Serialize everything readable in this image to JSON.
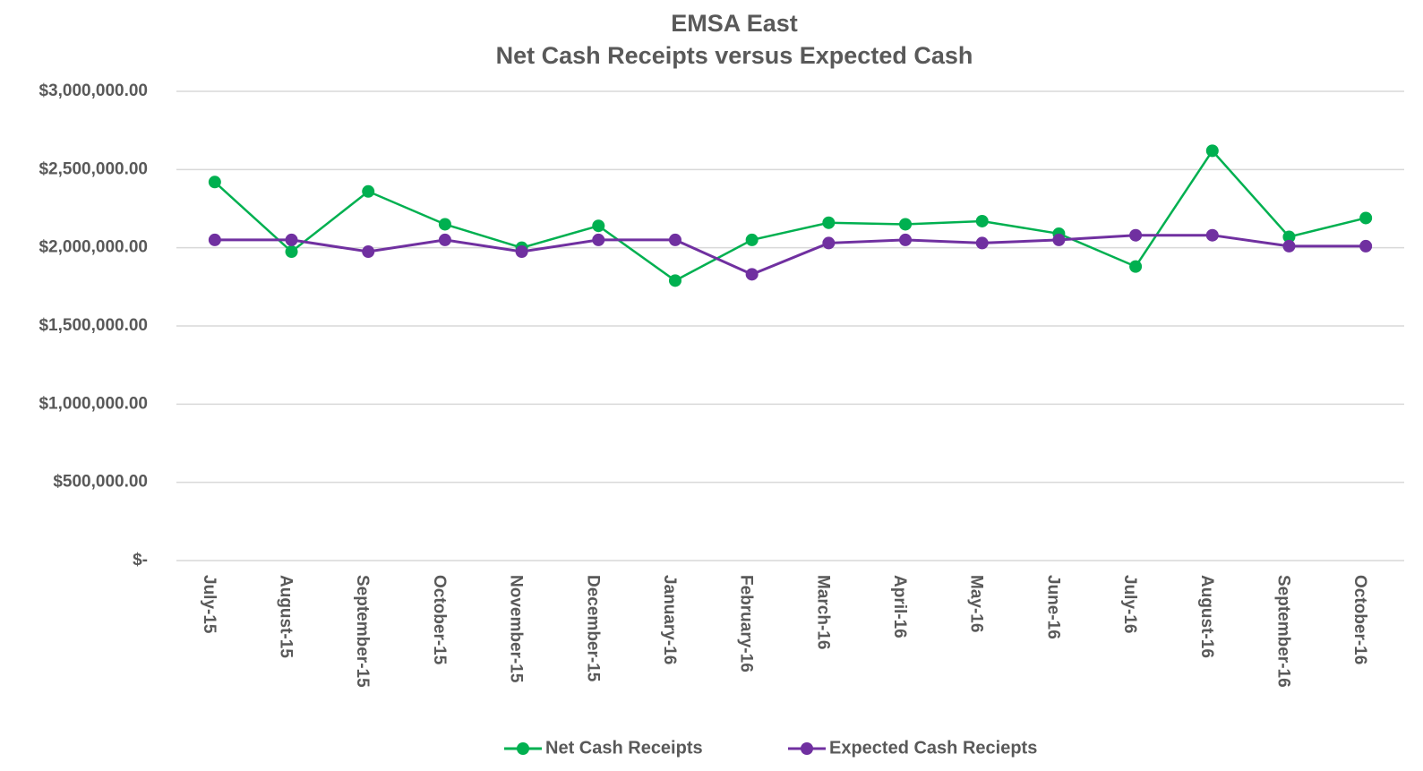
{
  "chart_data": {
    "type": "line",
    "title": "EMSA East",
    "subtitle": "Net Cash Receipts versus Expected Cash",
    "categories": [
      "July-15",
      "August-15",
      "September-15",
      "October-15",
      "November-15",
      "December-15",
      "January-16",
      "February-16",
      "March-16",
      "April-16",
      "May-16",
      "June-16",
      "July-16",
      "August-16",
      "September-16",
      "October-16"
    ],
    "series": [
      {
        "name": "Net Cash Receipts",
        "color": "#00b050",
        "values": [
          2420000,
          1975000,
          2360000,
          2150000,
          2000000,
          2140000,
          1790000,
          2050000,
          2160000,
          2150000,
          2170000,
          2090000,
          1880000,
          2620000,
          2070000,
          2190000
        ]
      },
      {
        "name": "Expected Cash Reciepts",
        "color": "#7030a0",
        "values": [
          2050000,
          2050000,
          1975000,
          2050000,
          1975000,
          2050000,
          2050000,
          1830000,
          2030000,
          2050000,
          2030000,
          2050000,
          2080000,
          2080000,
          2010000,
          2010000
        ]
      }
    ],
    "ylim": [
      0,
      3000000
    ],
    "yticks": [
      {
        "value": 0,
        "label": "$-"
      },
      {
        "value": 500000,
        "label": "$500,000.00"
      },
      {
        "value": 1000000,
        "label": "$1,000,000.00"
      },
      {
        "value": 1500000,
        "label": "$1,500,000.00"
      },
      {
        "value": 2000000,
        "label": "$2,000,000.00"
      },
      {
        "value": 2500000,
        "label": "$2,500,000.00"
      },
      {
        "value": 3000000,
        "label": "$3,000,000.00"
      }
    ],
    "grid": true,
    "legend": "bottom"
  }
}
